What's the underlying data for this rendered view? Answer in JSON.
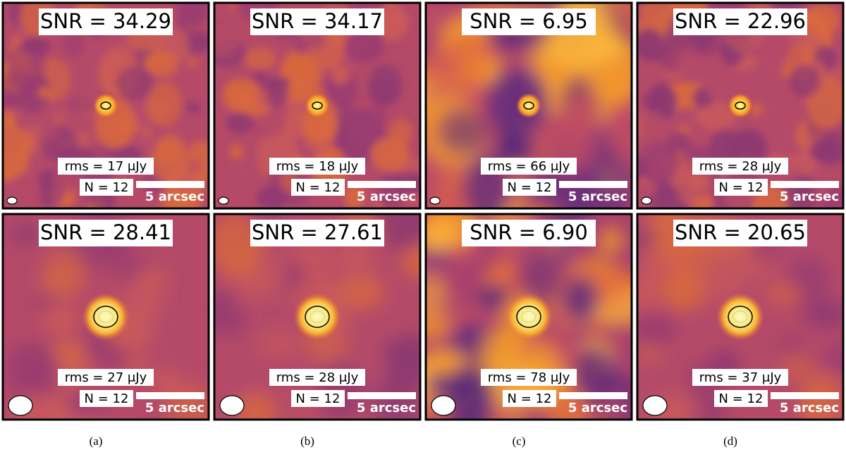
{
  "panels": [
    {
      "snr": "SNR = 34.29",
      "rms": "rms = 17 μJy",
      "n": "N = 12",
      "scale": "5 arcsec"
    },
    {
      "snr": "SNR = 34.17",
      "rms": "rms = 18 μJy",
      "n": "N = 12",
      "scale": "5 arcsec"
    },
    {
      "snr": "SNR = 6.95",
      "rms": "rms = 66 μJy",
      "n": "N = 12",
      "scale": "5 arcsec"
    },
    {
      "snr": "SNR = 22.96",
      "rms": "rms = 28 μJy",
      "n": "N = 12",
      "scale": "5 arcsec"
    },
    {
      "snr": "SNR = 28.41",
      "rms": "rms = 27 μJy",
      "n": "N = 12",
      "scale": "5 arcsec"
    },
    {
      "snr": "SNR = 27.61",
      "rms": "rms = 28 μJy",
      "n": "N = 12",
      "scale": "5 arcsec"
    },
    {
      "snr": "SNR = 6.90",
      "rms": "rms = 78 μJy",
      "n": "N = 12",
      "scale": "5 arcsec"
    },
    {
      "snr": "SNR = 20.65",
      "rms": "rms = 37 μJy",
      "n": "N = 12",
      "scale": "5 arcsec"
    }
  ],
  "captions": [
    "(a)",
    "(b)",
    "(c)",
    "(d)"
  ]
}
